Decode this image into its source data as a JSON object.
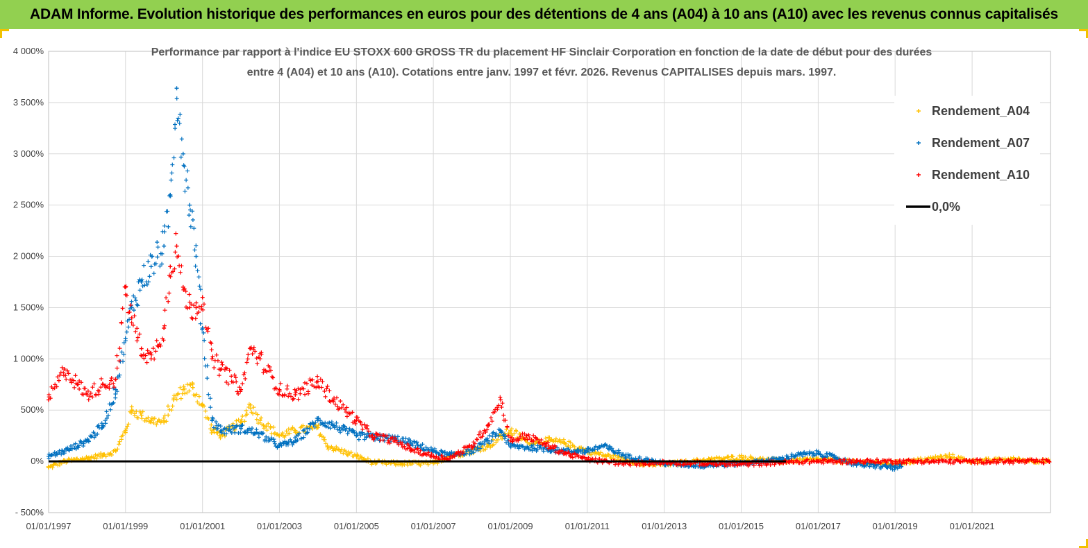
{
  "banner_title": "ADAM Informe. Evolution historique des performances en euros pour des détentions de 4 ans (A04) à 10 ans (A10) avec les revenus connus capitalisés",
  "colors": {
    "banner": "#92d050",
    "A04": "#ffc000",
    "A07": "#0070c0",
    "A10": "#ff0000",
    "zero": "#000000",
    "grid": "#d9d9d9"
  },
  "chart_data": {
    "type": "scatter",
    "title_lines": [
      "Performance par rapport à l'indice EU STOXX 600 GROSS TR  du placement HF Sinclair Corporation en fonction de la date de début pour des durées",
      "entre 4 (A04) et 10 ans (A10). Cotations entre janv. 1997 et févr. 2026. Revenus CAPITALISES depuis mars. 1997."
    ],
    "xlabel": "",
    "ylabel": "",
    "x_range": [
      "1997-01-01",
      "2023-01-15"
    ],
    "y_range": [
      -500,
      4000
    ],
    "y_ticks": [
      -500,
      0,
      500,
      1000,
      1500,
      2000,
      2500,
      3000,
      3500,
      4000
    ],
    "y_tick_labels": [
      "- 500%",
      "0%",
      "500%",
      "1 000%",
      "1 500%",
      "2 000%",
      "2 500%",
      "3 000%",
      "3 500%",
      "4 000%"
    ],
    "x_tick_labels": [
      "01/01/1997",
      "01/01/1999",
      "01/01/2001",
      "01/01/2003",
      "01/01/2005",
      "01/01/2007",
      "01/01/2009",
      "01/01/2011",
      "01/01/2013",
      "01/01/2015",
      "01/01/2017",
      "01/01/2019",
      "01/01/2021"
    ],
    "grid": true,
    "legend_position": "top-right",
    "legend": [
      "Rendement_A04",
      "Rendement_A07",
      "Rendement_A10",
      "0,0%"
    ],
    "series": [
      {
        "name": "Rendement_A04",
        "marker": "+",
        "points": [
          [
            "1997-01-01",
            -60
          ],
          [
            "1997-06-01",
            0
          ],
          [
            "1998-01-01",
            30
          ],
          [
            "1998-06-01",
            60
          ],
          [
            "1998-10-01",
            100
          ],
          [
            "1999-01-01",
            300
          ],
          [
            "1999-03-01",
            500
          ],
          [
            "1999-06-01",
            450
          ],
          [
            "1999-09-01",
            400
          ],
          [
            "2000-01-01",
            380
          ],
          [
            "2000-04-01",
            600
          ],
          [
            "2000-07-01",
            700
          ],
          [
            "2000-10-01",
            720
          ],
          [
            "2001-01-01",
            550
          ],
          [
            "2001-04-01",
            300
          ],
          [
            "2001-07-01",
            260
          ],
          [
            "2002-01-01",
            380
          ],
          [
            "2002-04-01",
            550
          ],
          [
            "2002-07-01",
            400
          ],
          [
            "2003-01-01",
            250
          ],
          [
            "2003-06-01",
            300
          ],
          [
            "2004-01-01",
            330
          ],
          [
            "2004-04-01",
            150
          ],
          [
            "2005-01-01",
            50
          ],
          [
            "2005-06-01",
            -10
          ],
          [
            "2006-01-01",
            -20
          ],
          [
            "2007-01-01",
            -20
          ],
          [
            "2007-06-01",
            50
          ],
          [
            "2008-01-01",
            100
          ],
          [
            "2008-06-01",
            150
          ],
          [
            "2009-01-01",
            300
          ],
          [
            "2009-06-01",
            200
          ],
          [
            "2010-01-01",
            200
          ],
          [
            "2010-06-01",
            180
          ],
          [
            "2011-01-01",
            100
          ],
          [
            "2011-06-01",
            60
          ],
          [
            "2012-01-01",
            20
          ],
          [
            "2012-06-01",
            -30
          ],
          [
            "2013-01-01",
            -30
          ],
          [
            "2014-01-01",
            10
          ],
          [
            "2015-01-01",
            40
          ],
          [
            "2016-01-01",
            0
          ],
          [
            "2017-01-01",
            20
          ],
          [
            "2018-01-01",
            -10
          ],
          [
            "2019-01-01",
            -20
          ],
          [
            "2019-06-01",
            0
          ],
          [
            "2020-01-01",
            30
          ],
          [
            "2020-06-01",
            50
          ],
          [
            "2021-01-01",
            0
          ],
          [
            "2022-01-01",
            20
          ],
          [
            "2023-01-01",
            0
          ]
        ]
      },
      {
        "name": "Rendement_A07",
        "marker": "+",
        "points": [
          [
            "1997-01-01",
            50
          ],
          [
            "1997-06-01",
            100
          ],
          [
            "1998-01-01",
            200
          ],
          [
            "1998-06-01",
            350
          ],
          [
            "1998-10-01",
            700
          ],
          [
            "1999-01-01",
            1200
          ],
          [
            "1999-03-01",
            1500
          ],
          [
            "1999-06-01",
            1750
          ],
          [
            "1999-09-01",
            1900
          ],
          [
            "2000-01-01",
            2100
          ],
          [
            "2000-03-01",
            2600
          ],
          [
            "2000-05-01",
            3640
          ],
          [
            "2000-07-01",
            3000
          ],
          [
            "2000-09-01",
            2500
          ],
          [
            "2000-11-01",
            2000
          ],
          [
            "2001-01-01",
            1300
          ],
          [
            "2001-04-01",
            400
          ],
          [
            "2001-07-01",
            300
          ],
          [
            "2002-01-01",
            320
          ],
          [
            "2002-06-01",
            280
          ],
          [
            "2003-01-01",
            150
          ],
          [
            "2003-06-01",
            200
          ],
          [
            "2004-01-01",
            400
          ],
          [
            "2004-06-01",
            350
          ],
          [
            "2005-01-01",
            250
          ],
          [
            "2006-01-01",
            220
          ],
          [
            "2006-06-01",
            180
          ],
          [
            "2007-01-01",
            100
          ],
          [
            "2007-06-01",
            60
          ],
          [
            "2008-01-01",
            100
          ],
          [
            "2008-06-01",
            200
          ],
          [
            "2008-10-01",
            300
          ],
          [
            "2009-01-01",
            150
          ],
          [
            "2010-01-01",
            120
          ],
          [
            "2010-06-01",
            100
          ],
          [
            "2011-01-01",
            100
          ],
          [
            "2011-06-01",
            150
          ],
          [
            "2012-01-01",
            50
          ],
          [
            "2013-01-01",
            -20
          ],
          [
            "2014-01-01",
            -40
          ],
          [
            "2015-01-01",
            -20
          ],
          [
            "2016-01-01",
            20
          ],
          [
            "2016-06-01",
            60
          ],
          [
            "2017-01-01",
            80
          ],
          [
            "2017-06-01",
            40
          ],
          [
            "2018-01-01",
            -30
          ],
          [
            "2019-01-01",
            -60
          ],
          [
            "2019-03-01",
            -50
          ]
        ]
      },
      {
        "name": "Rendement_A10",
        "marker": "+",
        "points": [
          [
            "1997-01-01",
            600
          ],
          [
            "1997-06-01",
            900
          ],
          [
            "1997-10-01",
            750
          ],
          [
            "1998-01-01",
            650
          ],
          [
            "1998-06-01",
            750
          ],
          [
            "1998-10-01",
            800
          ],
          [
            "1999-01-01",
            1700
          ],
          [
            "1999-03-01",
            1400
          ],
          [
            "1999-06-01",
            1100
          ],
          [
            "1999-09-01",
            1000
          ],
          [
            "2000-01-01",
            1300
          ],
          [
            "2000-03-01",
            1900
          ],
          [
            "2000-05-01",
            2100
          ],
          [
            "2000-07-01",
            1700
          ],
          [
            "2000-09-01",
            1500
          ],
          [
            "2000-11-01",
            1500
          ],
          [
            "2001-01-01",
            1600
          ],
          [
            "2001-04-01",
            1000
          ],
          [
            "2001-07-01",
            900
          ],
          [
            "2002-01-01",
            700
          ],
          [
            "2002-04-01",
            1100
          ],
          [
            "2002-07-01",
            1000
          ],
          [
            "2003-01-01",
            700
          ],
          [
            "2003-06-01",
            650
          ],
          [
            "2004-01-01",
            780
          ],
          [
            "2004-06-01",
            600
          ],
          [
            "2005-01-01",
            400
          ],
          [
            "2005-06-01",
            250
          ],
          [
            "2006-01-01",
            200
          ],
          [
            "2006-06-01",
            120
          ],
          [
            "2007-01-01",
            50
          ],
          [
            "2007-06-01",
            30
          ],
          [
            "2008-01-01",
            150
          ],
          [
            "2008-06-01",
            350
          ],
          [
            "2008-10-01",
            600
          ],
          [
            "2009-01-01",
            200
          ],
          [
            "2009-06-01",
            250
          ],
          [
            "2010-01-01",
            150
          ],
          [
            "2010-06-01",
            80
          ],
          [
            "2011-01-01",
            20
          ],
          [
            "2011-06-01",
            0
          ],
          [
            "2012-01-01",
            -20
          ],
          [
            "2013-01-01",
            -10
          ],
          [
            "2014-01-01",
            -20
          ],
          [
            "2015-01-01",
            -30
          ],
          [
            "2016-01-01",
            -10
          ],
          [
            "2017-01-01",
            0
          ],
          [
            "2018-01-01",
            0
          ],
          [
            "2019-01-01",
            0
          ],
          [
            "2020-01-01",
            0
          ],
          [
            "2021-01-01",
            0
          ],
          [
            "2022-01-01",
            0
          ],
          [
            "2023-01-01",
            0
          ]
        ]
      },
      {
        "name": "0,0%",
        "type": "line",
        "points": [
          [
            "1997-01-01",
            0
          ],
          [
            "2016-03-01",
            0
          ]
        ]
      }
    ]
  }
}
